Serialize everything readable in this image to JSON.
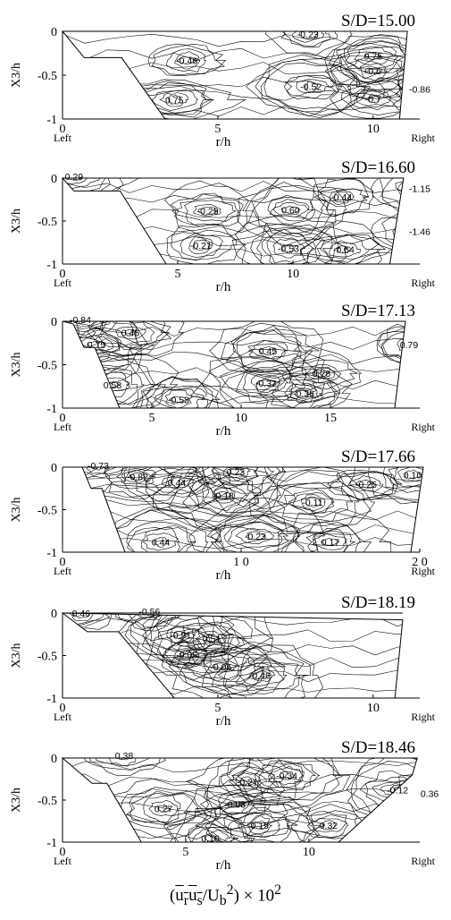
{
  "chart_data": [
    {
      "type": "contour",
      "title": "S/D=15.00",
      "ylabel": "X3/h",
      "xlabel": "r/h",
      "left_label": "Left",
      "right_label": "Right",
      "xticks": [
        "0",
        "5",
        "10"
      ],
      "yticks": [
        "0",
        "-0.5",
        "-1"
      ],
      "xlim": [
        0,
        11.5
      ],
      "ylim": [
        -1,
        0
      ],
      "boundary": [
        [
          0,
          0
        ],
        [
          0.7,
          -0.3
        ],
        [
          1.9,
          -0.3
        ],
        [
          3.3,
          -1
        ],
        [
          10.85,
          -1
        ],
        [
          11.1,
          0
        ]
      ],
      "labels": [
        {
          "text": "-0.46",
          "x": 4.0,
          "y": -0.33
        },
        {
          "text": "0.75",
          "x": 3.6,
          "y": -0.78
        },
        {
          "text": "-0.23",
          "x": 7.9,
          "y": -0.03
        },
        {
          "text": "-0.52",
          "x": 8.0,
          "y": -0.63
        },
        {
          "text": "0.75",
          "x": 10.0,
          "y": -0.28
        },
        {
          "text": "-0.6",
          "x": 10.0,
          "y": -0.45
        },
        {
          "text": "-0.7",
          "x": 10.0,
          "y": -0.77
        },
        {
          "text": "-0.86",
          "x": 11.5,
          "y": -0.66
        }
      ]
    },
    {
      "type": "contour",
      "title": "S/D=16.60",
      "ylabel": "X3/h",
      "xlabel": "r/h",
      "left_label": "Left",
      "right_label": "Right",
      "xticks": [
        "0",
        "5",
        "10"
      ],
      "yticks": [
        "0",
        "-0.5",
        "-1"
      ],
      "xlim": [
        0,
        15.5
      ],
      "ylim": [
        -1,
        0
      ],
      "boundary": [
        [
          0,
          0
        ],
        [
          0.5,
          -0.15
        ],
        [
          2.5,
          -0.15
        ],
        [
          4.5,
          -1
        ],
        [
          14.2,
          -1
        ],
        [
          14.8,
          0
        ]
      ],
      "labels": [
        {
          "text": "0.29",
          "x": 0.5,
          "y": 0.02
        },
        {
          "text": "-0.29",
          "x": 6.3,
          "y": -0.38
        },
        {
          "text": "-0.21",
          "x": 6.0,
          "y": -0.78
        },
        {
          "text": "0.60",
          "x": 9.9,
          "y": -0.37
        },
        {
          "text": "-0.53",
          "x": 9.8,
          "y": -0.82
        },
        {
          "text": "-0.44",
          "x": 12.1,
          "y": -0.22
        },
        {
          "text": "-0.64",
          "x": 12.2,
          "y": -0.83
        },
        {
          "text": "-1.15",
          "x": 15.5,
          "y": -0.12
        },
        {
          "text": "-1.46",
          "x": 15.5,
          "y": -0.62
        }
      ]
    },
    {
      "type": "contour",
      "title": "S/D=17.13",
      "ylabel": "X3/h",
      "xlabel": "r/h",
      "left_label": "Left",
      "right_label": "Right",
      "xticks": [
        "0",
        "5",
        "10",
        "15"
      ],
      "yticks": [
        "0",
        "-0.5",
        "-1"
      ],
      "xlim": [
        0,
        20
      ],
      "ylim": [
        -1,
        0
      ],
      "boundary": [
        [
          0,
          0
        ],
        [
          0.6,
          -0.03
        ],
        [
          1.2,
          -0.3
        ],
        [
          1.8,
          -0.3
        ],
        [
          3.2,
          -1
        ],
        [
          18.6,
          -1
        ],
        [
          19.2,
          0
        ]
      ],
      "labels": [
        {
          "text": "-0.84",
          "x": 1.0,
          "y": 0.02
        },
        {
          "text": "0.75",
          "x": 1.9,
          "y": -0.27
        },
        {
          "text": "0.45",
          "x": 3.8,
          "y": -0.13
        },
        {
          "text": "0.58",
          "x": 2.8,
          "y": -0.73
        },
        {
          "text": "-0.53",
          "x": 6.5,
          "y": -0.9
        },
        {
          "text": "0.45",
          "x": 11.5,
          "y": -0.34
        },
        {
          "text": "-0.32",
          "x": 11.4,
          "y": -0.71
        },
        {
          "text": "0.28",
          "x": 14.5,
          "y": -0.6
        },
        {
          "text": "-0.36",
          "x": 13.5,
          "y": -0.83
        },
        {
          "text": "0.79",
          "x": 19.4,
          "y": -0.27
        }
      ]
    },
    {
      "type": "contour",
      "title": "S/D=17.66",
      "ylabel": "X3/h",
      "xlabel": "r/h",
      "left_label": "Left",
      "right_label": "Right",
      "xticks": [
        "0",
        "1 0",
        "2 0"
      ],
      "yticks": [
        "0",
        "-0.5",
        "-1"
      ],
      "xlim": [
        0,
        20
      ],
      "ylim": [
        -1,
        0
      ],
      "boundary": [
        [
          0,
          0
        ],
        [
          1.1,
          0
        ],
        [
          1.6,
          -0.25
        ],
        [
          2.2,
          -0.25
        ],
        [
          3.5,
          -1
        ],
        [
          19.5,
          -1
        ],
        [
          20.2,
          0
        ]
      ],
      "labels": [
        {
          "text": "-0.73",
          "x": 2.0,
          "y": 0.02
        },
        {
          "text": "-0.82",
          "x": 4.2,
          "y": -0.11
        },
        {
          "text": "0.44",
          "x": 6.4,
          "y": -0.18
        },
        {
          "text": "0.23",
          "x": 9.7,
          "y": -0.05
        },
        {
          "text": "-0.18",
          "x": 9.0,
          "y": -0.33
        },
        {
          "text": "-0.11",
          "x": 14.0,
          "y": -0.41
        },
        {
          "text": "-0.25",
          "x": 17.0,
          "y": -0.2
        },
        {
          "text": "0.10",
          "x": 19.6,
          "y": -0.09
        },
        {
          "text": "0.44",
          "x": 5.5,
          "y": -0.88
        },
        {
          "text": "-0.23",
          "x": 10.8,
          "y": -0.81
        },
        {
          "text": "0.17",
          "x": 15.0,
          "y": -0.88
        }
      ]
    },
    {
      "type": "contour",
      "title": "S/D=18.19",
      "ylabel": "X3/h",
      "xlabel": "r/h",
      "left_label": "Left",
      "right_label": "Right",
      "xticks": [
        "0",
        "5",
        "10"
      ],
      "yticks": [
        "0",
        "-0.5",
        "-1"
      ],
      "xlim": [
        0,
        11.5
      ],
      "ylim": [
        -1,
        0
      ],
      "boundary": [
        [
          0,
          0
        ],
        [
          0.8,
          -0.22
        ],
        [
          1.8,
          -0.22
        ],
        [
          3.6,
          -1
        ],
        [
          10.7,
          -1
        ],
        [
          10.95,
          -0.08
        ]
      ],
      "labels": [
        {
          "text": "0.46",
          "x": 0.6,
          "y": 0.0
        },
        {
          "text": "-0.56",
          "x": 2.8,
          "y": 0.02
        },
        {
          "text": "-0.91",
          "x": 3.8,
          "y": -0.26
        },
        {
          "text": "0.51",
          "x": 4.8,
          "y": -0.3
        },
        {
          "text": "-0.05",
          "x": 4.0,
          "y": -0.49
        },
        {
          "text": "-0.06",
          "x": 5.1,
          "y": -0.63
        },
        {
          "text": "0.46",
          "x": 6.4,
          "y": -0.73
        }
      ]
    },
    {
      "type": "contour",
      "title": "S/D=18.46",
      "ylabel": "X3/h",
      "xlabel": "r/h",
      "left_label": "Left",
      "right_label": "Right",
      "xticks": [
        "0",
        "5",
        "10"
      ],
      "yticks": [
        "0",
        "-0.5",
        "-1"
      ],
      "xlim": [
        0,
        14.5
      ],
      "ylim": [
        -1,
        0
      ],
      "boundary": [
        [
          0,
          0
        ],
        [
          1.2,
          -0.3
        ],
        [
          1.8,
          -0.3
        ],
        [
          3.2,
          -1
        ],
        [
          11.2,
          -1
        ],
        [
          14.2,
          -0.2
        ],
        [
          14.4,
          0
        ]
      ],
      "labels": [
        {
          "text": "0.38",
          "x": 2.5,
          "y": 0.03
        },
        {
          "text": "0.27",
          "x": 4.1,
          "y": -0.6
        },
        {
          "text": "-0.21",
          "x": 7.5,
          "y": -0.28
        },
        {
          "text": "-0.34",
          "x": 9.1,
          "y": -0.21
        },
        {
          "text": "-0.03",
          "x": 7.0,
          "y": -0.55
        },
        {
          "text": "0.19",
          "x": 8.0,
          "y": -0.8
        },
        {
          "text": "0.32",
          "x": 10.8,
          "y": -0.8
        },
        {
          "text": "0.10",
          "x": 6.0,
          "y": -0.95
        },
        {
          "text": "-0.12",
          "x": 13.6,
          "y": -0.38
        },
        {
          "text": "0.36",
          "x": 14.9,
          "y": -0.42
        }
      ]
    }
  ],
  "caption": {
    "a": "(",
    "b": "u",
    "sub1": "r",
    "c": "u",
    "sub2": "s",
    "d": "/U",
    "sub3": "b",
    "sup1": "2",
    "e": ") × 10",
    "sup2": "2"
  }
}
